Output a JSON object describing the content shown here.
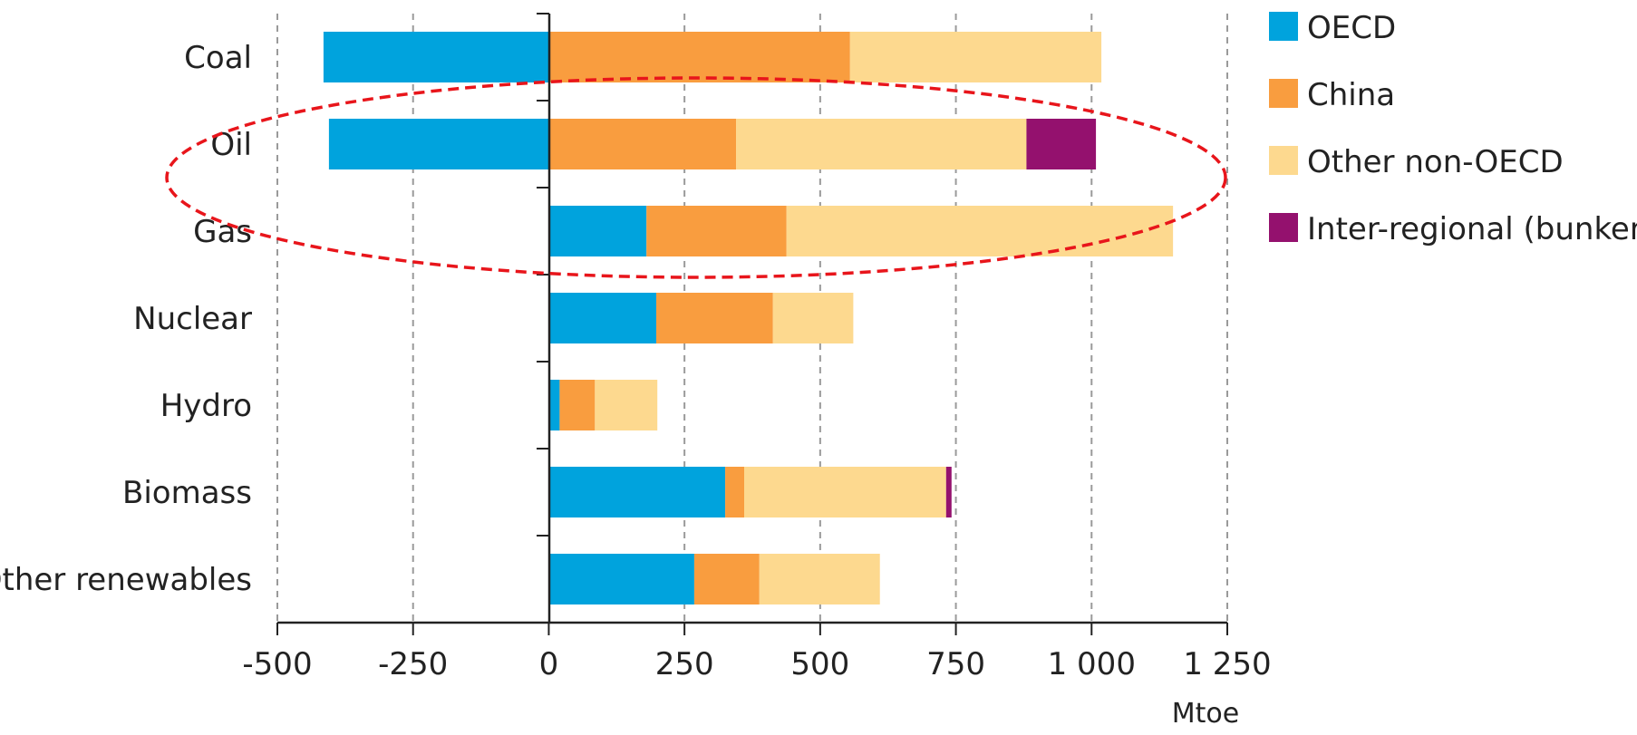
{
  "chart_data": {
    "type": "bar",
    "orientation": "horizontal",
    "stacked": true,
    "categories": [
      "Coal",
      "Oil",
      "Gas",
      "Nuclear",
      "Hydro",
      "Biomass",
      "Other renewables"
    ],
    "series": [
      {
        "name": "OECD",
        "color": "#00a3dd",
        "values": [
          -415,
          -405,
          180,
          198,
          20,
          325,
          268
        ]
      },
      {
        "name": "China",
        "color": "#f99d3f",
        "values": [
          555,
          345,
          258,
          215,
          65,
          35,
          120
        ]
      },
      {
        "name": "Other non-OECD",
        "color": "#fdd98f",
        "values": [
          463,
          535,
          712,
          148,
          115,
          372,
          222
        ]
      },
      {
        "name": "Inter-regional (bunkers)",
        "color": "#94116e",
        "values": [
          0,
          128,
          0,
          0,
          0,
          10,
          0
        ]
      }
    ],
    "xlabel": "Mtoe",
    "xlim": [
      -500,
      1250
    ],
    "xticks": [
      -500,
      -250,
      0,
      250,
      500,
      750,
      1000,
      1250
    ],
    "xtick_labels": [
      "-500",
      "-250",
      "0",
      "250",
      "500",
      "750",
      "1 000",
      "1 250"
    ],
    "grid": "vertical-dashed",
    "legend_position": "top-right",
    "annotation": {
      "type": "dashed-ellipse",
      "color": "#e8151b",
      "highlights": [
        "Oil",
        "Gas"
      ]
    }
  }
}
